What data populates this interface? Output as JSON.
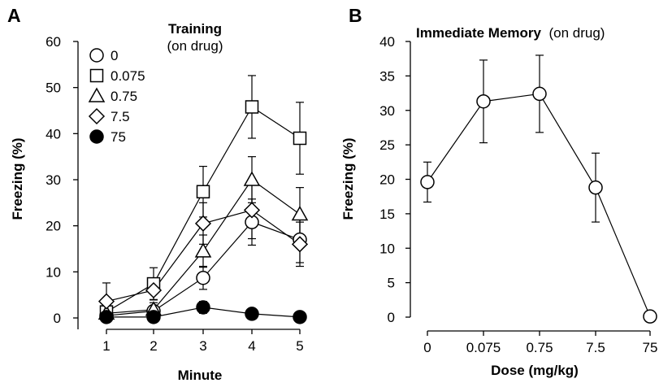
{
  "chart_data": [
    {
      "panel": "A",
      "type": "line",
      "title": "Training",
      "subtitle": "(on drug)",
      "xlabel": "Minute",
      "ylabel": "Freezing (%)",
      "x": [
        1,
        2,
        3,
        4,
        5
      ],
      "xlim": [
        0.7,
        5.3
      ],
      "ylim": [
        0,
        60
      ],
      "yticks": [
        0,
        10,
        20,
        30,
        40,
        50,
        60
      ],
      "grid": false,
      "legend_position": "top-left",
      "series": [
        {
          "name": "0",
          "marker": "circle",
          "fill": "white",
          "values": [
            0.5,
            1.5,
            8.7,
            20.8,
            17.0
          ],
          "error": [
            0.8,
            1.2,
            2.5,
            5.0,
            5.0
          ]
        },
        {
          "name": "0.075",
          "marker": "square",
          "fill": "white",
          "values": [
            1.3,
            7.4,
            27.4,
            45.8,
            39.0
          ],
          "error": [
            1.5,
            3.5,
            5.5,
            6.8,
            7.8
          ]
        },
        {
          "name": "0.75",
          "marker": "triangle",
          "fill": "white",
          "values": [
            1.0,
            1.8,
            14.5,
            30.0,
            22.5
          ],
          "error": [
            1.0,
            1.5,
            3.5,
            5.0,
            5.8
          ]
        },
        {
          "name": "7.5",
          "marker": "diamond",
          "fill": "white",
          "values": [
            3.6,
            6.0,
            20.5,
            23.4,
            16.0
          ],
          "error": [
            4.0,
            2.0,
            4.5,
            6.2,
            4.8
          ]
        },
        {
          "name": "75",
          "marker": "circle",
          "fill": "black",
          "values": [
            0.2,
            0.2,
            2.3,
            0.9,
            0.2
          ],
          "error": [
            0.2,
            0.2,
            1.3,
            0.5,
            0.2
          ]
        }
      ]
    },
    {
      "panel": "B",
      "type": "line",
      "title": "Immediate Memory",
      "subtitle": "(on drug)",
      "xlabel": "Dose (mg/kg)",
      "ylabel": "Freezing (%)",
      "categories": [
        "0",
        "0.075",
        "0.75",
        "7.5",
        "75"
      ],
      "ylim": [
        0,
        40
      ],
      "yticks": [
        0,
        5,
        10,
        15,
        20,
        25,
        30,
        35,
        40
      ],
      "grid": false,
      "series": [
        {
          "marker": "circle",
          "fill": "white",
          "values": [
            19.6,
            31.3,
            32.4,
            18.8,
            0.1
          ],
          "error": [
            2.9,
            6.0,
            5.6,
            5.0,
            0
          ]
        }
      ]
    }
  ]
}
